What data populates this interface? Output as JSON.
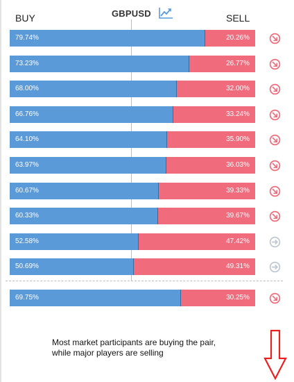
{
  "header": {
    "buy_label": "BUY",
    "pair": "GBPUSD",
    "sell_label": "SELL"
  },
  "colors": {
    "buy": "#5b9ad9",
    "sell": "#f06c7c",
    "sell_signal_icon": "#f06c7c",
    "neutral_icon": "#bfc7d1"
  },
  "rows": [
    {
      "buy": 79.74,
      "buy_text": "79.74%",
      "sell_text": "20.26%",
      "icon": "sell-signal-icon"
    },
    {
      "buy": 73.23,
      "buy_text": "73.23%",
      "sell_text": "26.77%",
      "icon": "sell-signal-icon"
    },
    {
      "buy": 68.0,
      "buy_text": "68.00%",
      "sell_text": "32.00%",
      "icon": "sell-signal-icon"
    },
    {
      "buy": 66.76,
      "buy_text": "66.76%",
      "sell_text": "33.24%",
      "icon": "sell-signal-icon"
    },
    {
      "buy": 64.1,
      "buy_text": "64.10%",
      "sell_text": "35.90%",
      "icon": "sell-signal-icon"
    },
    {
      "buy": 63.97,
      "buy_text": "63.97%",
      "sell_text": "36.03%",
      "icon": "sell-signal-icon"
    },
    {
      "buy": 60.67,
      "buy_text": "60.67%",
      "sell_text": "39.33%",
      "icon": "sell-signal-icon"
    },
    {
      "buy": 60.33,
      "buy_text": "60.33%",
      "sell_text": "39.67%",
      "icon": "sell-signal-icon"
    },
    {
      "buy": 52.58,
      "buy_text": "52.58%",
      "sell_text": "47.42%",
      "icon": "neutral-signal-icon"
    },
    {
      "buy": 50.69,
      "buy_text": "50.69%",
      "sell_text": "49.31%",
      "icon": "neutral-signal-icon"
    }
  ],
  "summary": {
    "buy": 69.75,
    "buy_text": "69.75%",
    "sell_text": "30.25%",
    "icon": "sell-signal-icon"
  },
  "message": {
    "line1": "Most market participants are buying the pair,",
    "line2": "while major players are selling"
  }
}
